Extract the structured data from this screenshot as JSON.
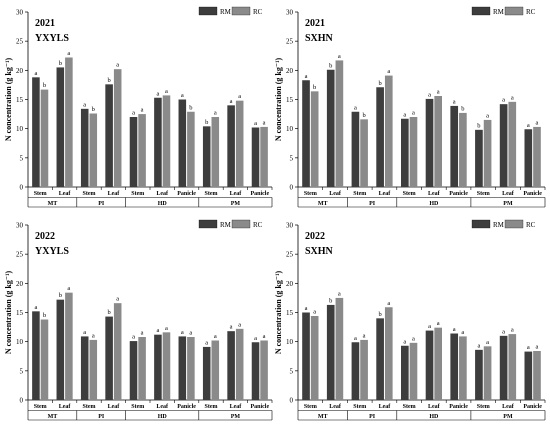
{
  "chart_data": [
    {
      "type": "bar",
      "title": "2021",
      "subtitle": "YXYLS",
      "ylabel": "N concentration (g kg⁻¹)",
      "ylim": [
        0,
        30
      ],
      "yticks": [
        0,
        5,
        10,
        15,
        20,
        25,
        30
      ],
      "categories": [
        "Stem",
        "Leaf",
        "Stem",
        "Leaf",
        "Stem",
        "Leaf",
        "Panicle",
        "Stem",
        "Leaf",
        "Panicle"
      ],
      "groups": [
        {
          "label": "MT",
          "count": 2
        },
        {
          "label": "PI",
          "count": 2
        },
        {
          "label": "HD",
          "count": 3
        },
        {
          "label": "PM",
          "count": 3
        }
      ],
      "series": [
        {
          "name": "RM",
          "color": "#3d3d3d",
          "values": [
            18.8,
            20.5,
            13.4,
            17.6,
            12.0,
            15.3,
            15.0,
            10.4,
            14.0,
            10.2
          ],
          "labels": [
            "a",
            "b",
            "a",
            "b",
            "a",
            "a",
            "a",
            "b",
            "a",
            "a"
          ]
        },
        {
          "name": "RC",
          "color": "#8a8a8a",
          "values": [
            16.7,
            22.2,
            12.6,
            20.2,
            12.5,
            15.7,
            12.9,
            12.0,
            14.8,
            10.3
          ],
          "labels": [
            "b",
            "a",
            "b",
            "a",
            "a",
            "a",
            "b",
            "a",
            "a",
            "a"
          ]
        }
      ]
    },
    {
      "type": "bar",
      "title": "2021",
      "subtitle": "SXHN",
      "ylabel": "N concentration (g kg⁻¹)",
      "ylim": [
        0,
        30
      ],
      "yticks": [
        0,
        5,
        10,
        15,
        20,
        25,
        30
      ],
      "categories": [
        "Stem",
        "Leaf",
        "Stem",
        "Leaf",
        "Stem",
        "Leaf",
        "Panicle",
        "Stem",
        "Leaf",
        "Panicle"
      ],
      "groups": [
        {
          "label": "MT",
          "count": 2
        },
        {
          "label": "PI",
          "count": 2
        },
        {
          "label": "HD",
          "count": 3
        },
        {
          "label": "PM",
          "count": 3
        }
      ],
      "series": [
        {
          "name": "RM",
          "color": "#3d3d3d",
          "values": [
            18.3,
            20.1,
            12.9,
            17.1,
            11.7,
            15.1,
            13.9,
            9.8,
            14.2,
            9.9
          ],
          "labels": [
            "a",
            "b",
            "a",
            "b",
            "a",
            "a",
            "a",
            "b",
            "a",
            "a"
          ]
        },
        {
          "name": "RC",
          "color": "#8a8a8a",
          "values": [
            16.4,
            21.7,
            11.6,
            19.1,
            12.0,
            15.6,
            12.7,
            11.5,
            14.6,
            10.3
          ],
          "labels": [
            "b",
            "a",
            "b",
            "a",
            "a",
            "a",
            "b",
            "a",
            "a",
            "a"
          ]
        }
      ]
    },
    {
      "type": "bar",
      "title": "2022",
      "subtitle": "YXYLS",
      "ylabel": "N concentration (g kg⁻¹)",
      "ylim": [
        0,
        30
      ],
      "yticks": [
        0,
        5,
        10,
        15,
        20,
        25,
        30
      ],
      "categories": [
        "Stem",
        "Leaf",
        "Stem",
        "Leaf",
        "Stem",
        "Leaf",
        "Panicle",
        "Stem",
        "Leaf",
        "Panicle"
      ],
      "groups": [
        {
          "label": "MT",
          "count": 2
        },
        {
          "label": "PI",
          "count": 2
        },
        {
          "label": "HD",
          "count": 3
        },
        {
          "label": "PM",
          "count": 3
        }
      ],
      "series": [
        {
          "name": "RM",
          "color": "#3d3d3d",
          "values": [
            15.2,
            17.2,
            10.9,
            14.3,
            10.1,
            11.2,
            10.9,
            9.1,
            11.8,
            9.9
          ],
          "labels": [
            "a",
            "b",
            "a",
            "b",
            "a",
            "a",
            "a",
            "a",
            "a",
            "a"
          ]
        },
        {
          "name": "RC",
          "color": "#8a8a8a",
          "values": [
            13.8,
            18.4,
            10.3,
            16.6,
            10.8,
            11.6,
            10.8,
            10.2,
            12.2,
            10.2
          ],
          "labels": [
            "b",
            "a",
            "a",
            "a",
            "a",
            "a",
            "a",
            "a",
            "a",
            "a"
          ]
        }
      ]
    },
    {
      "type": "bar",
      "title": "2022",
      "subtitle": "SXHN",
      "ylabel": "N concentration (g kg⁻¹)",
      "ylim": [
        0,
        30
      ],
      "yticks": [
        0,
        5,
        10,
        15,
        20,
        25,
        30
      ],
      "categories": [
        "Stem",
        "Leaf",
        "Stem",
        "Leaf",
        "Stem",
        "Leaf",
        "Panicle",
        "Stem",
        "Leaf",
        "Panicle"
      ],
      "groups": [
        {
          "label": "MT",
          "count": 2
        },
        {
          "label": "PI",
          "count": 2
        },
        {
          "label": "HD",
          "count": 3
        },
        {
          "label": "PM",
          "count": 3
        }
      ],
      "series": [
        {
          "name": "RM",
          "color": "#3d3d3d",
          "values": [
            15.0,
            16.3,
            9.9,
            14.0,
            9.3,
            11.9,
            11.4,
            8.6,
            11.0,
            8.3
          ],
          "labels": [
            "a",
            "b",
            "a",
            "b",
            "a",
            "a",
            "a",
            "a",
            "a",
            "a"
          ]
        },
        {
          "name": "RC",
          "color": "#8a8a8a",
          "values": [
            14.4,
            17.5,
            10.3,
            15.9,
            9.8,
            12.4,
            10.9,
            9.2,
            11.3,
            8.4
          ],
          "labels": [
            "a",
            "a",
            "a",
            "a",
            "a",
            "a",
            "a",
            "a",
            "a",
            "a"
          ]
        }
      ]
    }
  ]
}
